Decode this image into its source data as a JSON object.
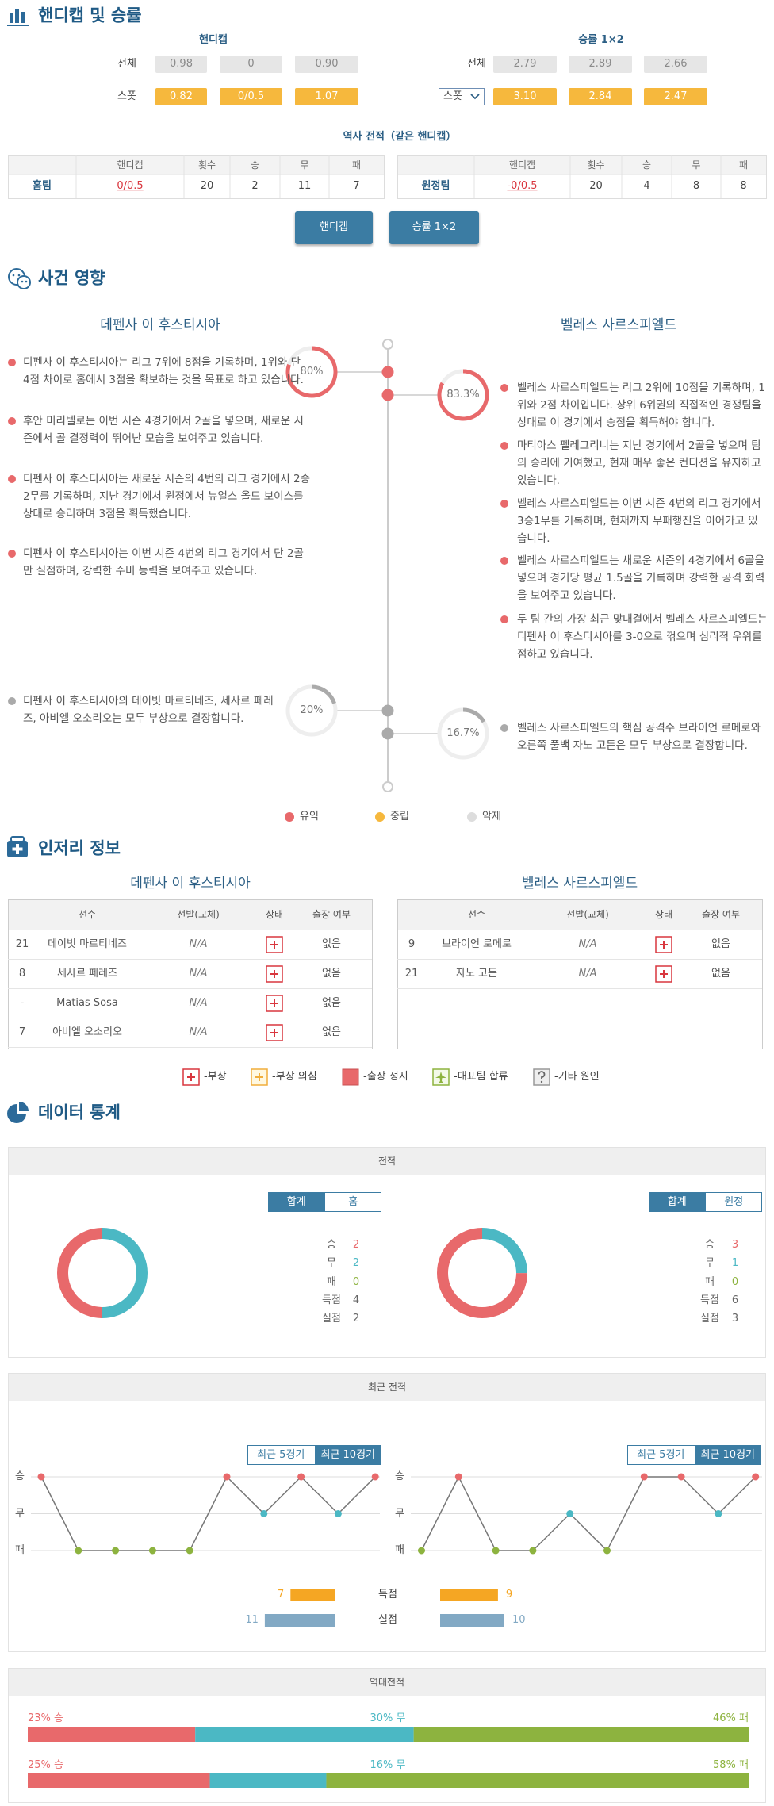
{
  "handicap": {
    "title": "핸디캡 및 승률",
    "handicap_title": "핸디캡",
    "odds_title": "승률 1×2",
    "handicap_rows": [
      {
        "label": "전체",
        "values": [
          "0.98",
          "0",
          "0.90"
        ]
      },
      {
        "label": "스폿",
        "values": [
          "0.82",
          "0/0.5",
          "1.07"
        ]
      }
    ],
    "odds_rows": [
      {
        "label": "전체",
        "values": [
          "2.79",
          "2.89",
          "2.66"
        ]
      },
      {
        "label": "스폿",
        "values": [
          "3.10",
          "2.84",
          "2.47"
        ]
      }
    ],
    "history_title": "역사 전적（같은 핸디캡）",
    "history_headers": [
      "핸디캡",
      "횟수",
      "승",
      "무",
      "패"
    ],
    "history_rows": [
      [
        "홈팀",
        "0/0.5",
        "20",
        "2",
        "11",
        "7"
      ],
      [
        "원정팀",
        "-0/0.5",
        "20",
        "4",
        "8",
        "8"
      ]
    ],
    "buttons": [
      "핸디캡",
      "승률 1×2"
    ]
  },
  "events": {
    "title": "사건 영향",
    "teams": [
      "데펜사 이 후스티시아",
      "벨레스 사르스피엘드"
    ],
    "home": {
      "positive": {
        "value": 80,
        "label": "80%",
        "items": [
          "디펜사 이 후스티시아는 리그 7위에 8점을 기록하며, 1위와 단 4점 차이로 홈에서 3점을 확보하는 것을 목표로 하고 있습니다.",
          "후안 미리텔로는 이번 시즌 4경기에서 2골을 넣으며, 새로운 시즌에서 골 결정력이 뛰어난 모습을 보여주고 있습니다.",
          "디펜사 이 후스티시아는 새로운 시즌의 4번의 리그 경기에서 2승2무를 기록하며, 지난 경기에서 원정에서 뉴얼스 올드 보이스를 상대로 승리하며 3점을 획득했습니다.",
          "디펜사 이 후스티시아는 이번 시즌 4번의 리그 경기에서 단 2골만 실점하며, 강력한 수비 능력을 보여주고 있습니다."
        ]
      },
      "negative": {
        "value": 20,
        "label": "20%",
        "items": [
          "디펜사 이 후스티시아의 데이빗 마르티네즈, 세사르 페레즈, 아비엘 오소리오는 모두 부상으로 결장합니다."
        ]
      }
    },
    "away": {
      "positive": {
        "value": 83.3,
        "label": "83.3%",
        "items": [
          "벨레스 사르스피엘드는 리그 2위에 10점을 기록하며, 1위와 2점 차이입니다. 상위 6위권의 직접적인 경쟁팀을 상대로 이 경기에서 승점을 획득해야 합니다.",
          "마티아스 펠레그리니는 지난 경기에서 2골을 넣으며 팀의 승리에 기여했고, 현재 매우 좋은 컨디션을 유지하고 있습니다.",
          "벨레스 사르스피엘드는 이번 시즌 4번의 리그 경기에서 3승1무를 기록하며, 현재까지 무패행진을 이어가고 있습니다.",
          "벨레스 사르스피엘드는 새로운 시즌의 4경기에서 6골을 넣으며 경기당 평균 1.5골을 기록하며 강력한 공격 화력을 보여주고 있습니다.",
          "두 팀 간의 가장 최근 맞대결에서 벨레스 사르스피엘드는 디펜사 이 후스티시아를 3-0으로 꺾으며 심리적 우위를 점하고 있습니다."
        ]
      },
      "negative": {
        "value": 16.7,
        "label": "16.7%",
        "items": [
          "벨레스 사르스피엘드의 핵심 공격수 브라이언 로메로와 오른쪽 풀백 자노 고든은 모두 부상으로 결장합니다."
        ]
      }
    },
    "legend": [
      "유익",
      "중립",
      "악재"
    ]
  },
  "injury": {
    "title": "인저리 정보",
    "teams": [
      "데펜사 이 후스티시아",
      "벨레스 사르스피엘드"
    ],
    "headers": [
      "선수",
      "선발(교체)",
      "상태",
      "출장 여부"
    ],
    "home": [
      [
        "21",
        "데이빗 마르티네즈",
        "N/A",
        "없음"
      ],
      [
        "8",
        "세사르 페레즈",
        "N/A",
        "없음"
      ],
      [
        "-",
        "Matias Sosa",
        "N/A",
        "없음"
      ],
      [
        "7",
        "아비엘 오소리오",
        "N/A",
        "없음"
      ]
    ],
    "away": [
      [
        "9",
        "브라이언 로메로",
        "N/A",
        "없음"
      ],
      [
        "21",
        "자노 고든",
        "N/A",
        "없음"
      ]
    ],
    "legend": [
      "-부상",
      "-부상 의심",
      "-출장 정지",
      "-대표팀 합류",
      "-기타 원인"
    ]
  },
  "stats": {
    "title": "데이터 통계",
    "palette": [
      "#e8696b",
      "#4bb8c4",
      "#8db33f"
    ],
    "record": {
      "title": "전적",
      "home": {
        "tabs": [
          "합계",
          "홈"
        ],
        "items": [
          {
            "label": "승",
            "value": 2
          },
          {
            "label": "무",
            "value": 2
          },
          {
            "label": "패",
            "value": 0
          },
          {
            "label": "득점",
            "value": 4
          },
          {
            "label": "실점",
            "value": 2
          }
        ]
      },
      "away": {
        "tabs": [
          "합계",
          "원정"
        ],
        "items": [
          {
            "label": "승",
            "value": 3
          },
          {
            "label": "무",
            "value": 1
          },
          {
            "label": "패",
            "value": 0
          },
          {
            "label": "득점",
            "value": 6
          },
          {
            "label": "실점",
            "value": 3
          }
        ]
      }
    },
    "recent": {
      "title": "최근 전적",
      "tabs": [
        "최근 5경기",
        "최근 10경기"
      ],
      "levels": [
        "승",
        "무",
        "패"
      ],
      "home": [
        "승",
        "패",
        "패",
        "패",
        "패",
        "승",
        "무",
        "승",
        "무",
        "승"
      ],
      "away": [
        "패",
        "승",
        "패",
        "패",
        "무",
        "패",
        "승",
        "승",
        "무",
        "승"
      ],
      "goals": {
        "label": "득점",
        "home": 7,
        "away": 9,
        "color": "#f5a623"
      },
      "conceded": {
        "label": "실점",
        "home": 11,
        "away": 10,
        "color": "#82a9c4"
      }
    },
    "h2h": {
      "title": "역대전적",
      "rows": [
        {
          "win": {
            "value": 23,
            "label": "23% 승"
          },
          "draw": {
            "value": 30,
            "label": "30% 무"
          },
          "loss": {
            "value": 46,
            "label": "46% 패"
          }
        },
        {
          "win": {
            "value": 25,
            "label": "25% 승"
          },
          "draw": {
            "value": 16,
            "label": "16% 무"
          },
          "loss": {
            "value": 58,
            "label": "58% 패"
          }
        }
      ]
    }
  }
}
